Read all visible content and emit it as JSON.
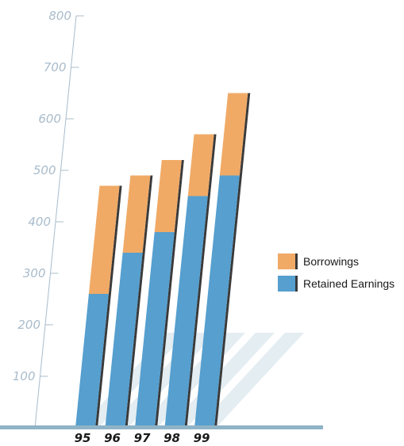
{
  "chart_data": {
    "type": "bar",
    "stacked": true,
    "categories": [
      "95",
      "96",
      "97",
      "98",
      "99"
    ],
    "series": [
      {
        "name": "Retained Earnings",
        "values": [
          260,
          340,
          380,
          450,
          490
        ],
        "color": "#569fcf"
      },
      {
        "name": "Borrowings",
        "values": [
          210,
          150,
          140,
          120,
          160
        ],
        "color": "#f0aa66"
      }
    ],
    "yticks": [
      "100",
      "200",
      "300",
      "400",
      "500",
      "600",
      "700",
      "800"
    ],
    "ylim": [
      0,
      800
    ],
    "grid": false,
    "legend_position": "right"
  }
}
